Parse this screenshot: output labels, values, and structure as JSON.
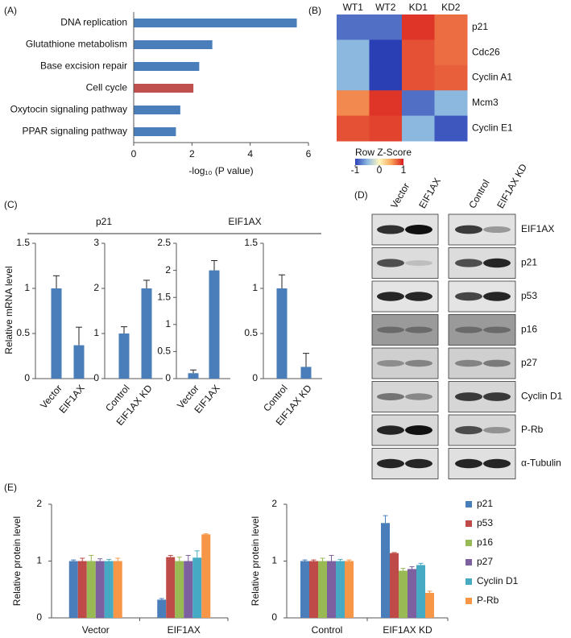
{
  "chart_data": [
    {
      "type": "barh",
      "panel": "(A)",
      "categories": [
        "DNA replication",
        "Glutathione metabolism",
        "Base excision repair",
        "Cell cycle",
        "Oxytocin signaling pathway",
        "PPAR signaling pathway"
      ],
      "values": [
        5.6,
        2.7,
        2.25,
        2.05,
        1.6,
        1.45
      ],
      "colors": [
        "#4a7ebb",
        "#4a7ebb",
        "#4a7ebb",
        "#c0504d",
        "#4a7ebb",
        "#4a7ebb"
      ],
      "xlim": [
        0,
        6
      ],
      "xticks": [
        0,
        2,
        4,
        6
      ],
      "xlabel": "-log₁₀ (P value)"
    },
    {
      "type": "heatmap",
      "panel": "(B)",
      "columns": [
        "WT1",
        "WT2",
        "KD1",
        "KD2"
      ],
      "rows": [
        "p21",
        "Cdc26",
        "Cyclin A1",
        "Mcm3",
        "Cyclin E1"
      ],
      "values": [
        [
          -0.8,
          -0.8,
          0.9,
          0.7
        ],
        [
          -0.5,
          -1,
          0.8,
          0.7
        ],
        [
          -0.5,
          -1,
          0.8,
          0.75
        ],
        [
          0.6,
          0.9,
          -0.8,
          -0.5
        ],
        [
          0.8,
          0.85,
          -0.5,
          -0.9
        ]
      ],
      "colormap": [
        "#2b3fb5",
        "#8cb8e0",
        "#fff8c0",
        "#f9a55a",
        "#d7191c"
      ],
      "clim": [
        -1,
        1
      ],
      "colorbar_label": "Row Z-Score",
      "colorbar_ticks": [
        -1,
        0,
        1
      ]
    },
    {
      "type": "bar",
      "panel": "(C)",
      "group_label": "p21",
      "ylabel": "Relative mRNA level",
      "categories": [
        "Vector",
        "EIF1AX"
      ],
      "values": [
        1,
        0.37
      ],
      "errors": [
        0.14,
        0.2
      ],
      "color": "#4a7ebb",
      "ylim": [
        0,
        1.5
      ],
      "yticks": [
        0,
        0.5,
        1,
        1.5
      ]
    },
    {
      "type": "bar",
      "categories": [
        "Control",
        "EIF1AX KD"
      ],
      "values": [
        1,
        2
      ],
      "errors": [
        0.15,
        0.18
      ],
      "color": "#4a7ebb",
      "ylim": [
        0,
        3
      ],
      "yticks": [
        0,
        1,
        2,
        3
      ]
    },
    {
      "type": "bar",
      "group_label": "EIF1AX",
      "categories": [
        "Vector",
        "EIF1AX"
      ],
      "values": [
        0.1,
        2
      ],
      "errors": [
        0.06,
        0.18
      ],
      "color": "#4a7ebb",
      "ylim": [
        0,
        2.5
      ],
      "yticks": [
        0,
        0.5,
        1,
        1.5,
        2,
        2.5
      ]
    },
    {
      "type": "bar",
      "categories": [
        "Control",
        "EIF1AX KD"
      ],
      "values": [
        1,
        0.13
      ],
      "errors": [
        0.15,
        0.15
      ],
      "color": "#4a7ebb",
      "ylim": [
        0,
        1.5
      ],
      "yticks": [
        0,
        0.5,
        1,
        1.5
      ]
    },
    {
      "type": "grouped_bar",
      "panel": "(E)",
      "ylabel": "Relative protein level",
      "categories": [
        "Vector",
        "EIF1AX"
      ],
      "ylim": [
        0,
        2
      ],
      "yticks": [
        0,
        1,
        2
      ],
      "series": [
        {
          "name": "p21",
          "color": "#4a7ebb",
          "values": [
            1,
            0.32
          ],
          "errors": [
            0.02,
            0.02
          ]
        },
        {
          "name": "p53",
          "color": "#be4b48",
          "values": [
            1,
            1.07
          ],
          "errors": [
            0.05,
            0.03
          ]
        },
        {
          "name": "p16",
          "color": "#98b954",
          "values": [
            1,
            1.0
          ],
          "errors": [
            0.1,
            0.07
          ]
        },
        {
          "name": "p27",
          "color": "#7d60a0",
          "values": [
            1,
            1.0
          ],
          "errors": [
            0.04,
            0.1
          ]
        },
        {
          "name": "Cyclin D1",
          "color": "#46aac5",
          "values": [
            1,
            1.06
          ],
          "errors": [
            0.03,
            0.12
          ]
        },
        {
          "name": "P-Rb",
          "color": "#f79646",
          "values": [
            1,
            1.47
          ],
          "errors": [
            0.05,
            0.01
          ]
        }
      ]
    },
    {
      "type": "grouped_bar",
      "ylabel": "Relative protein level",
      "categories": [
        "Control",
        "EIF1AX KD"
      ],
      "ylim": [
        0,
        2
      ],
      "yticks": [
        0,
        1,
        2
      ],
      "legend": "right",
      "series": [
        {
          "name": "p21",
          "color": "#4a7ebb",
          "values": [
            1,
            1.67
          ],
          "errors": [
            0.02,
            0.13
          ]
        },
        {
          "name": "p53",
          "color": "#be4b48",
          "values": [
            1,
            1.14
          ],
          "errors": [
            0.02,
            0.01
          ]
        },
        {
          "name": "p16",
          "color": "#98b954",
          "values": [
            1,
            0.83
          ],
          "errors": [
            0.05,
            0.04
          ]
        },
        {
          "name": "p27",
          "color": "#7d60a0",
          "values": [
            1,
            0.86
          ],
          "errors": [
            0.1,
            0.04
          ]
        },
        {
          "name": "Cyclin D1",
          "color": "#46aac5",
          "values": [
            1,
            0.93
          ],
          "errors": [
            0.03,
            0.03
          ]
        },
        {
          "name": "P-Rb",
          "color": "#f79646",
          "values": [
            1,
            0.44
          ],
          "errors": [
            0.02,
            0.03
          ]
        }
      ]
    }
  ],
  "blot": {
    "panel": "(D)",
    "lanes": [
      "Vector",
      "EIF1AX",
      "Control",
      "EIF1AX KD"
    ],
    "rows": [
      "EIF1AX",
      "p21",
      "p53",
      "p16",
      "p27",
      "Cyclin D1",
      "P-Rb",
      "α-Tubulin"
    ]
  }
}
